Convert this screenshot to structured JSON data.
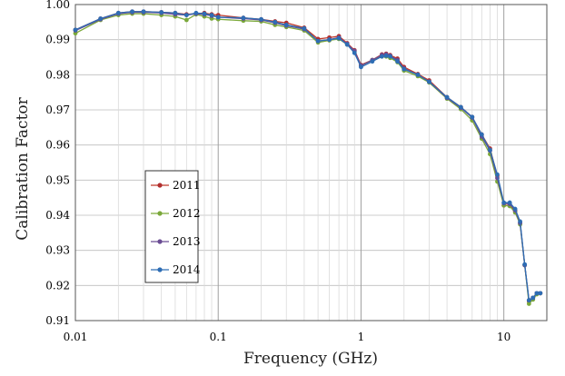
{
  "chart_data": {
    "type": "line",
    "xscale": "log",
    "xlim": [
      0.01,
      20
    ],
    "ylim": [
      0.91,
      1.0
    ],
    "xlabel": "Frequency (GHz)",
    "ylabel": "Calibration Factor",
    "xticks": [
      {
        "value": 0.01,
        "label": "0.01"
      },
      {
        "value": 0.1,
        "label": "0.1"
      },
      {
        "value": 1,
        "label": "1"
      },
      {
        "value": 10,
        "label": "10"
      }
    ],
    "yticks": [
      {
        "value": 0.91,
        "label": "0.91"
      },
      {
        "value": 0.92,
        "label": "0.92"
      },
      {
        "value": 0.93,
        "label": "0.93"
      },
      {
        "value": 0.94,
        "label": "0.94"
      },
      {
        "value": 0.95,
        "label": "0.95"
      },
      {
        "value": 0.96,
        "label": "0.96"
      },
      {
        "value": 0.97,
        "label": "0.97"
      },
      {
        "value": 0.98,
        "label": "0.98"
      },
      {
        "value": 0.99,
        "label": "0.99"
      },
      {
        "value": 1.0,
        "label": "1.00"
      }
    ],
    "grid": true,
    "legend": {
      "placement": "lower-left"
    },
    "x": [
      0.01,
      0.015,
      0.02,
      0.025,
      0.03,
      0.04,
      0.05,
      0.06,
      0.07,
      0.08,
      0.09,
      0.1,
      0.15,
      0.2,
      0.25,
      0.3,
      0.4,
      0.5,
      0.6,
      0.7,
      0.8,
      0.9,
      1.0,
      1.2,
      1.4,
      1.5,
      1.6,
      1.8,
      2.0,
      2.5,
      3.0,
      4.0,
      5.0,
      6.0,
      7.0,
      8.0,
      9.0,
      10.0,
      11.0,
      12.0,
      13.0,
      14.0,
      15.0,
      16.0,
      17.0,
      18.0
    ],
    "series": [
      {
        "name": "2011",
        "color": "#c0392b",
        "marker_color": "#b03030",
        "values": [
          0.9928,
          0.996,
          0.9976,
          0.998,
          0.998,
          0.9978,
          0.9976,
          0.9972,
          0.9974,
          0.9976,
          0.9972,
          0.997,
          0.9962,
          0.9958,
          0.9952,
          0.9948,
          0.9934,
          0.9902,
          0.9906,
          0.991,
          0.989,
          0.987,
          0.9828,
          0.9842,
          0.9858,
          0.986,
          0.9856,
          0.9846,
          0.9822,
          0.9802,
          0.9784,
          0.9736,
          0.9708,
          0.968,
          0.963,
          0.959,
          0.9512,
          0.9428,
          0.9428,
          0.9412,
          0.9378,
          0.9258,
          0.9155,
          0.9165,
          0.9178,
          0.9178
        ]
      },
      {
        "name": "2012",
        "color": "#7daa3c",
        "marker_color": "#7aa83a",
        "values": [
          0.9918,
          0.9956,
          0.997,
          0.9974,
          0.9974,
          0.997,
          0.9966,
          0.9956,
          0.9972,
          0.9966,
          0.996,
          0.9958,
          0.9954,
          0.9952,
          0.9942,
          0.9936,
          0.9926,
          0.9892,
          0.9898,
          0.9902,
          0.9886,
          0.9866,
          0.9826,
          0.9842,
          0.9852,
          0.9852,
          0.9848,
          0.9836,
          0.9812,
          0.9796,
          0.9778,
          0.9732,
          0.9702,
          0.967,
          0.9618,
          0.9574,
          0.9496,
          0.9428,
          0.9426,
          0.9408,
          0.9374,
          0.9258,
          0.9148,
          0.916,
          0.9175,
          0.9178
        ]
      },
      {
        "name": "2013",
        "color": "#6a4c93",
        "marker_color": "#6a4c93",
        "values": [
          0.9926,
          0.9958,
          0.9974,
          0.9978,
          0.9978,
          0.9976,
          0.9972,
          0.997,
          0.9974,
          0.9972,
          0.9968,
          0.9964,
          0.996,
          0.9956,
          0.9948,
          0.994,
          0.993,
          0.9896,
          0.99,
          0.9906,
          0.9888,
          0.9868,
          0.9826,
          0.9842,
          0.9856,
          0.9858,
          0.9854,
          0.9842,
          0.9818,
          0.98,
          0.978,
          0.9734,
          0.9706,
          0.9678,
          0.9624,
          0.9584,
          0.9506,
          0.9434,
          0.9432,
          0.9414,
          0.9378,
          0.9258,
          0.9158,
          0.9165,
          0.9178,
          0.9178
        ]
      },
      {
        "name": "2014",
        "color": "#2e6db4",
        "marker_color": "#2e6db4",
        "values": [
          0.9928,
          0.996,
          0.9976,
          0.998,
          0.998,
          0.9978,
          0.9976,
          0.997,
          0.9976,
          0.9974,
          0.997,
          0.9964,
          0.9962,
          0.9958,
          0.995,
          0.9942,
          0.9932,
          0.9896,
          0.99,
          0.9904,
          0.9886,
          0.9862,
          0.9822,
          0.9838,
          0.9852,
          0.9854,
          0.9852,
          0.9838,
          0.9816,
          0.98,
          0.978,
          0.9736,
          0.9708,
          0.968,
          0.963,
          0.9586,
          0.9516,
          0.9436,
          0.9436,
          0.9418,
          0.9382,
          0.926,
          0.9158,
          0.9165,
          0.9178,
          0.9178
        ]
      }
    ]
  }
}
